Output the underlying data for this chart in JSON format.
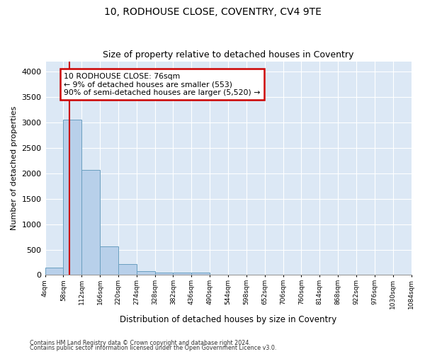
{
  "title": "10, RODHOUSE CLOSE, COVENTRY, CV4 9TE",
  "subtitle": "Size of property relative to detached houses in Coventry",
  "xlabel": "Distribution of detached houses by size in Coventry",
  "ylabel": "Number of detached properties",
  "bar_color": "#b8d0ea",
  "bar_edge_color": "#6a9fc0",
  "plot_bg_color": "#dce8f5",
  "bin_edges": [
    4,
    58,
    112,
    166,
    220,
    274,
    328,
    382,
    436,
    490,
    544,
    598,
    652,
    706,
    760,
    814,
    868,
    922,
    976,
    1030,
    1084
  ],
  "bin_counts": [
    150,
    3060,
    2070,
    560,
    215,
    75,
    50,
    50,
    50,
    0,
    0,
    0,
    0,
    0,
    0,
    0,
    0,
    0,
    0,
    0
  ],
  "property_size": 76,
  "red_line_color": "#cc0000",
  "annotation_line1": "10 RODHOUSE CLOSE: 76sqm",
  "annotation_line2": "← 9% of detached houses are smaller (553)",
  "annotation_line3": "90% of semi-detached houses are larger (5,520) →",
  "annotation_box_color": "#cc0000",
  "ylim": [
    0,
    4200
  ],
  "yticks": [
    0,
    500,
    1000,
    1500,
    2000,
    2500,
    3000,
    3500,
    4000
  ],
  "footer_line1": "Contains HM Land Registry data © Crown copyright and database right 2024.",
  "footer_line2": "Contains public sector information licensed under the Open Government Licence v3.0.",
  "grid_color": "#ffffff"
}
